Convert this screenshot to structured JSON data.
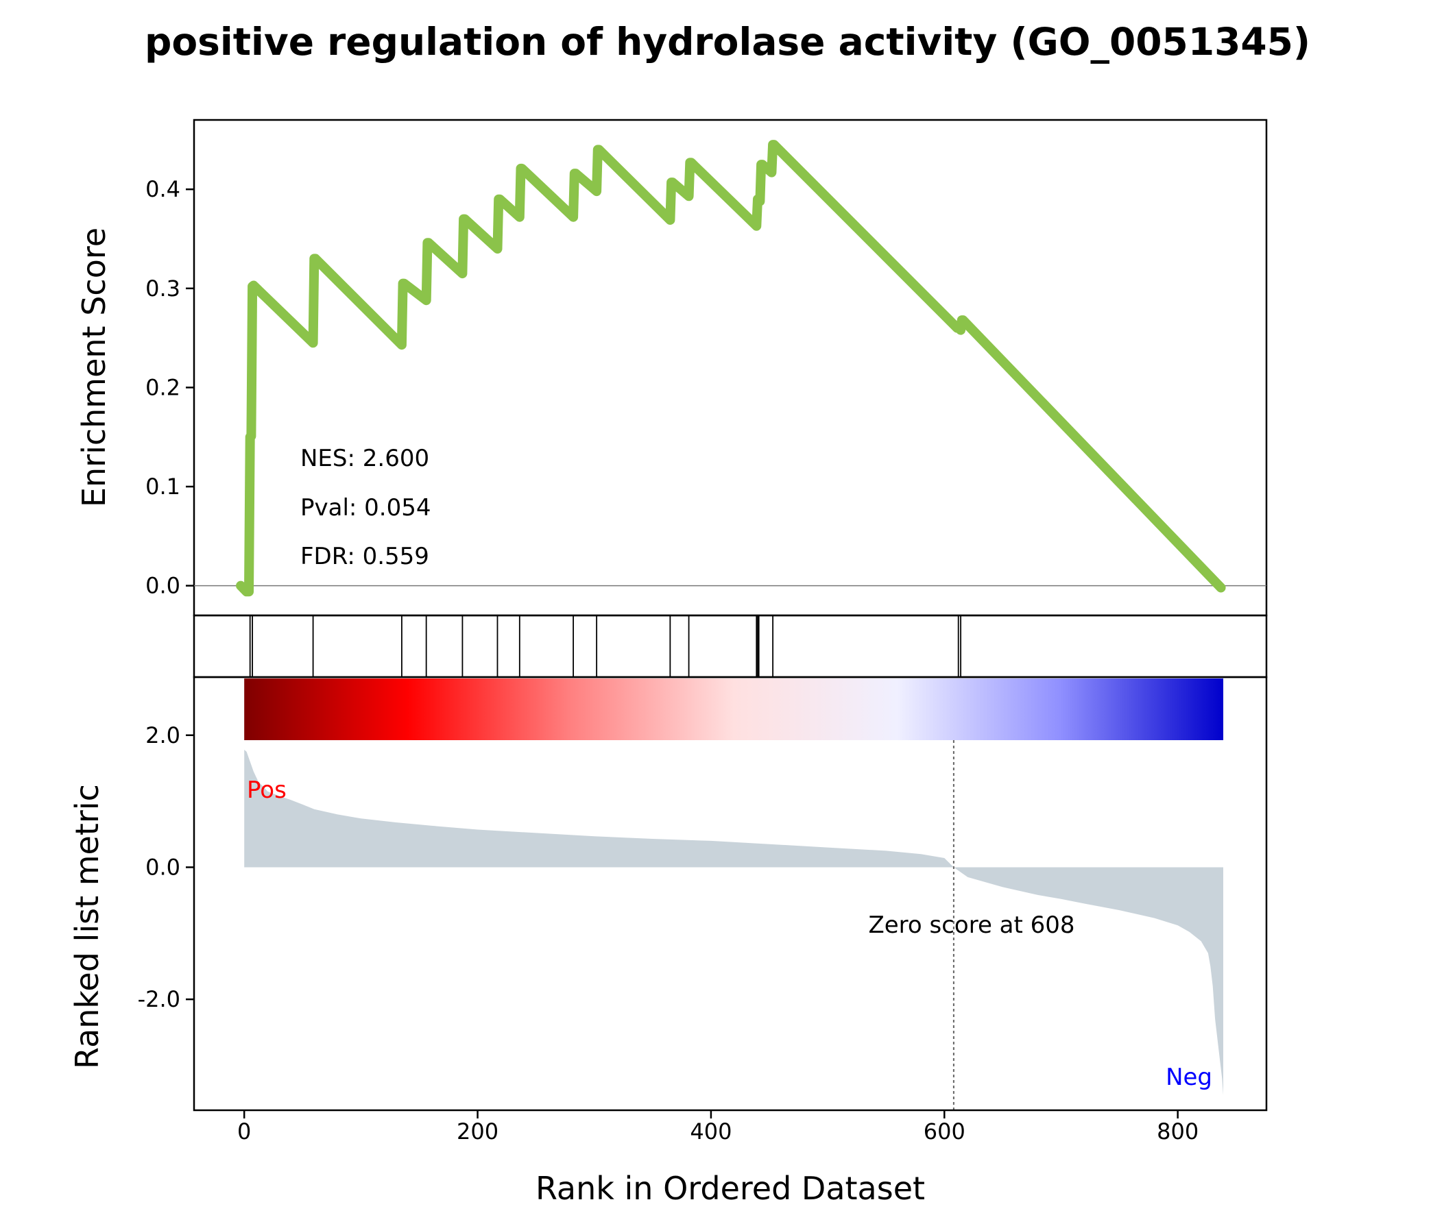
{
  "chart_data": {
    "type": "line",
    "title": "positive regulation of hydrolase activity (GO_0051345)",
    "xlabel": "Rank in Ordered Dataset",
    "xlim": [
      -43,
      876
    ],
    "xticks": [
      0,
      200,
      400,
      600,
      800
    ],
    "es_panel": {
      "ylabel": "Enrichment Score",
      "ylim": [
        -0.03,
        0.47
      ],
      "yticks": [
        "0.0",
        "0.1",
        "0.2",
        "0.3",
        "0.4"
      ],
      "ytick_values": [
        0.0,
        0.1,
        0.2,
        0.3,
        0.4
      ],
      "line_color": "#8bc34a",
      "series": [
        {
          "x": [
            -3,
            2,
            4,
            5,
            6,
            7,
            8,
            59,
            60,
            61,
            135,
            136,
            137,
            156,
            157,
            158,
            187,
            188,
            189,
            217,
            218,
            219,
            236,
            237,
            238,
            282,
            283,
            284,
            302,
            303,
            304,
            365,
            366,
            367,
            381,
            382,
            383,
            439,
            440,
            441,
            442,
            443,
            444,
            452,
            453,
            454,
            611,
            612,
            613,
            614,
            615,
            616,
            837
          ],
          "y": [
            0.0,
            -0.006,
            -0.006,
            0.15,
            0.151,
            0.302,
            0.303,
            0.245,
            0.33,
            0.33,
            0.243,
            0.305,
            0.305,
            0.288,
            0.346,
            0.346,
            0.315,
            0.37,
            0.37,
            0.34,
            0.39,
            0.39,
            0.372,
            0.421,
            0.421,
            0.372,
            0.416,
            0.416,
            0.398,
            0.44,
            0.44,
            0.369,
            0.407,
            0.407,
            0.393,
            0.427,
            0.427,
            0.363,
            0.39,
            0.39,
            0.388,
            0.425,
            0.425,
            0.417,
            0.445,
            0.445,
            0.26,
            0.262,
            0.262,
            0.258,
            0.268,
            0.268,
            -0.002
          ]
        }
      ],
      "stats": {
        "nes": "NES: 2.600",
        "pval": "Pval: 0.054",
        "fdr": "FDR: 0.559"
      }
    },
    "hits_panel": {
      "positions": [
        5,
        7,
        59,
        135,
        156,
        187,
        217,
        236,
        282,
        302,
        365,
        381,
        439,
        440,
        441,
        453,
        612,
        614
      ]
    },
    "rank_panel": {
      "ylabel": "Ranked list metric",
      "ylim": [
        -3.68,
        2.88
      ],
      "yticks": [
        "2.0",
        "0.0",
        "-2.0"
      ],
      "ytick_values": [
        2.0,
        0.0,
        -2.0
      ],
      "fill_color": "#c9d3da",
      "zero_cross": 608,
      "zero_label": "Zero score at 608",
      "pos_label": "Pos",
      "neg_label": "Neg",
      "pos_color": "#ff0000",
      "neg_color": "#0000ff",
      "heatmap_colors": [
        "#7f0000",
        "#ff0000",
        "#ff8080",
        "#ffe0e0",
        "#f0f0ff",
        "#9090ff",
        "#0000cc"
      ],
      "metric_curve": {
        "x": [
          0,
          2,
          5,
          8,
          12,
          20,
          30,
          40,
          50,
          60,
          80,
          100,
          130,
          160,
          200,
          250,
          300,
          350,
          400,
          450,
          500,
          550,
          580,
          600,
          608,
          620,
          650,
          680,
          700,
          720,
          750,
          780,
          800,
          810,
          820,
          826,
          828,
          830,
          832,
          834,
          836,
          838,
          839
        ],
        "y": [
          1.78,
          1.75,
          1.6,
          1.45,
          1.3,
          1.15,
          1.08,
          1.02,
          0.95,
          0.88,
          0.8,
          0.74,
          0.68,
          0.63,
          0.57,
          0.52,
          0.47,
          0.43,
          0.4,
          0.35,
          0.3,
          0.25,
          0.2,
          0.14,
          0.0,
          -0.15,
          -0.3,
          -0.42,
          -0.48,
          -0.55,
          -0.65,
          -0.77,
          -0.88,
          -0.98,
          -1.12,
          -1.3,
          -1.5,
          -1.8,
          -2.3,
          -2.6,
          -2.9,
          -3.2,
          -3.45
        ]
      }
    }
  }
}
